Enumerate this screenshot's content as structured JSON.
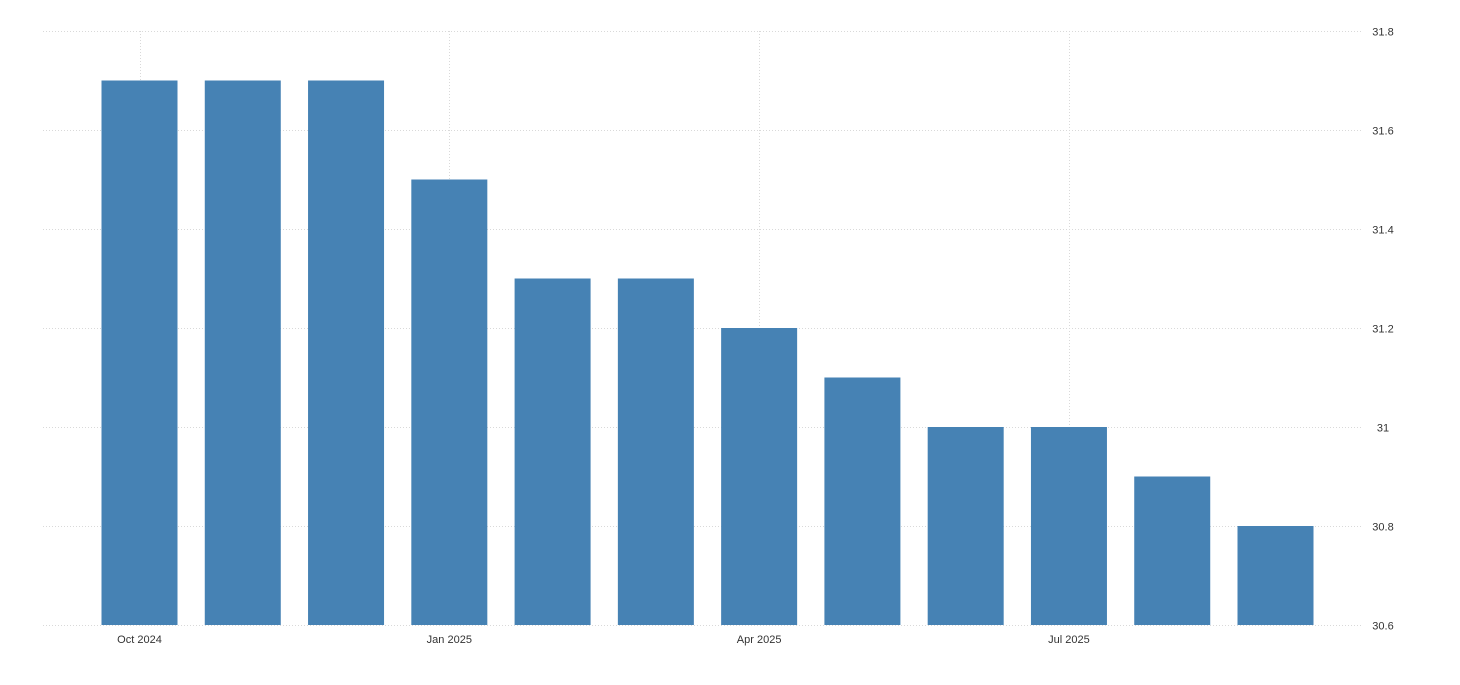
{
  "chart_data": {
    "type": "bar",
    "title": "",
    "xlabel": "",
    "ylabel": "",
    "categories": [
      "2024-10",
      "2024-11",
      "2024-12",
      "2025-01",
      "2025-02",
      "2025-03",
      "2025-04",
      "2025-05",
      "2025-06",
      "2025-07",
      "2025-08",
      "2025-09"
    ],
    "series": [
      {
        "values": [
          31.7,
          31.7,
          31.7,
          31.5,
          31.3,
          31.3,
          31.2,
          31.1,
          31.0,
          31.0,
          30.9,
          30.8
        ],
        "color": "#4682b4"
      }
    ],
    "ylim": [
      30.6,
      31.8
    ],
    "y_ticks": [
      {
        "value": 31.8,
        "label": "31.8"
      },
      {
        "value": 31.6,
        "label": "31.6"
      },
      {
        "value": 31.4,
        "label": "31.4"
      },
      {
        "value": 31.2,
        "label": "31.2"
      },
      {
        "value": 31.0,
        "label": "31"
      },
      {
        "value": 30.8,
        "label": "30.8"
      },
      {
        "value": 30.6,
        "label": "30.6"
      }
    ],
    "x_ticks": [
      {
        "category": "2024-10",
        "label": "Oct 2024"
      },
      {
        "category": "2025-01",
        "label": "Jan 2025"
      },
      {
        "category": "2025-04",
        "label": "Apr 2025"
      },
      {
        "category": "2025-07",
        "label": "Jul 2025"
      }
    ],
    "y_axis_position": "right",
    "grid": true,
    "legend": "none"
  }
}
